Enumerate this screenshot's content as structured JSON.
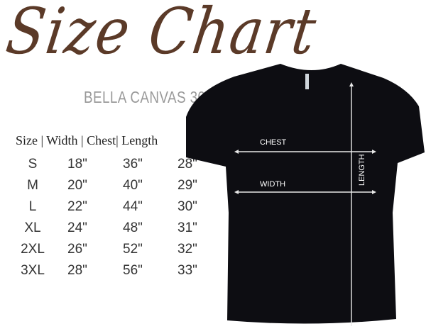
{
  "title": "Size Chart",
  "subtitle": "BELLA CANVAS 3001",
  "table": {
    "header": "Size | Width | Chest| Length",
    "rows": [
      [
        "S",
        "18\"",
        "36\"",
        "28\""
      ],
      [
        "M",
        "20\"",
        "40\"",
        "29\""
      ],
      [
        "L",
        "22\"",
        "44\"",
        "30\""
      ],
      [
        "XL",
        "24\"",
        "48\"",
        "31\""
      ],
      [
        "2XL",
        "26\"",
        "52\"",
        "32\""
      ],
      [
        "3XL",
        "28\"",
        "56\"",
        "33\""
      ]
    ]
  },
  "diagram": {
    "chest_label": "CHEST",
    "width_label": "WIDTH",
    "length_label": "LENGTH"
  },
  "colors": {
    "title": "#5b3a28",
    "shirt": "#0d0d12",
    "subtitle": "#9a9a9a"
  }
}
